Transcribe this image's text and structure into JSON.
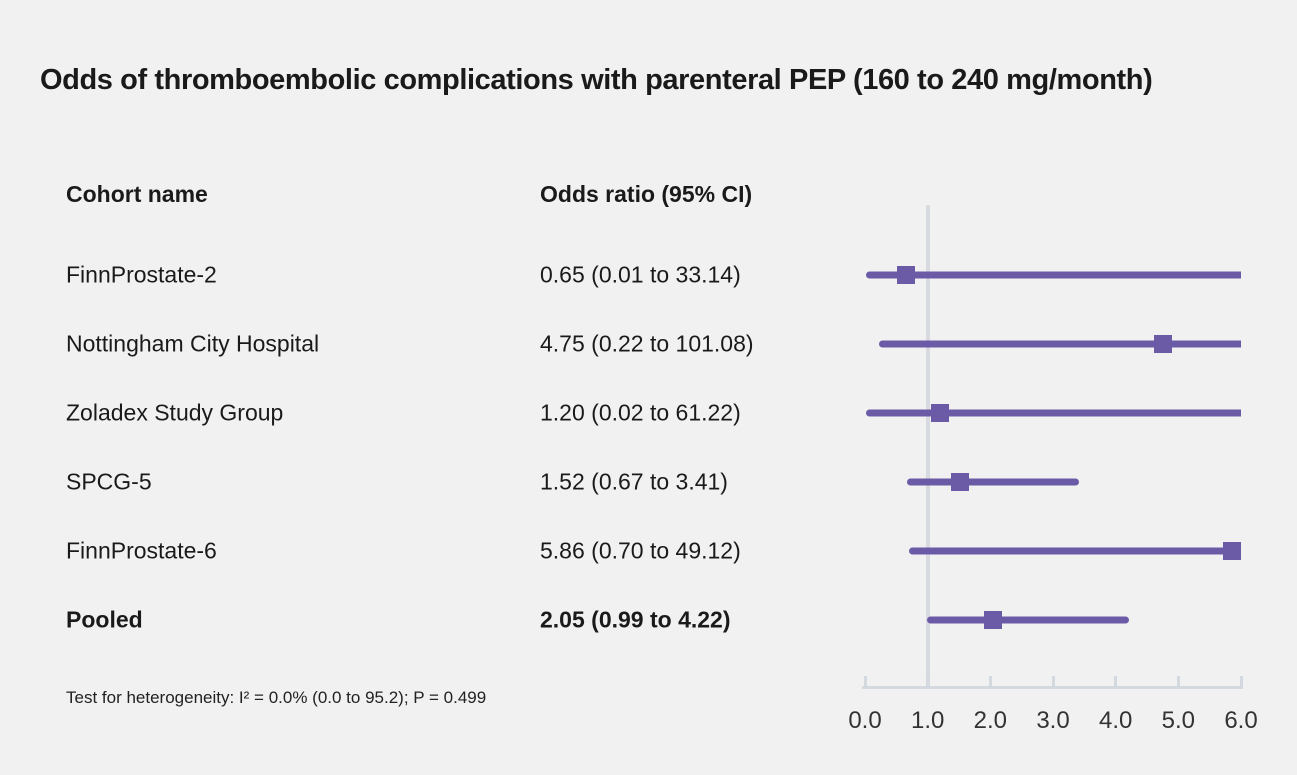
{
  "title": "Odds of thromboembolic complications with parenteral PEP (160 to 240 mg/month)",
  "columns": {
    "cohort": "Cohort name",
    "or": "Odds ratio (95% CI)"
  },
  "footnote": "Test for heterogeneity: I² = 0.0% (0.0 to 95.2); P = 0.499",
  "colors": {
    "accent": "#6b5aa5",
    "background": "#f2f1f1",
    "axis": "#d4d8df",
    "reference_line": "#d7dae1",
    "text": "#1a1a1a",
    "tick_text": "#333333"
  },
  "chart_data": {
    "type": "forest",
    "title": "Odds of thromboembolic complications with parenteral PEP (160 to 240 mg/month)",
    "xlim": [
      0.0,
      6.0
    ],
    "x_ticks": [
      "0.0",
      "1.0",
      "2.0",
      "3.0",
      "4.0",
      "5.0",
      "6.0"
    ],
    "reference_line_x": 1.0,
    "grid": false,
    "legend": "none",
    "rows": [
      {
        "label": "FinnProstate-2",
        "or": 0.65,
        "ci_low": 0.01,
        "ci_high": 33.14,
        "or_text": "0.65 (0.01 to 33.14)",
        "bold": false
      },
      {
        "label": "Nottingham City Hospital",
        "or": 4.75,
        "ci_low": 0.22,
        "ci_high": 101.08,
        "or_text": "4.75 (0.22 to 101.08)",
        "bold": false
      },
      {
        "label": "Zoladex Study Group",
        "or": 1.2,
        "ci_low": 0.02,
        "ci_high": 61.22,
        "or_text": "1.20 (0.02 to 61.22)",
        "bold": false
      },
      {
        "label": "SPCG-5",
        "or": 1.52,
        "ci_low": 0.67,
        "ci_high": 3.41,
        "or_text": "1.52 (0.67 to 3.41)",
        "bold": false
      },
      {
        "label": "FinnProstate-6",
        "or": 5.86,
        "ci_low": 0.7,
        "ci_high": 49.12,
        "or_text": "5.86 (0.70 to 49.12)",
        "bold": false
      },
      {
        "label": "Pooled",
        "or": 2.05,
        "ci_low": 0.99,
        "ci_high": 4.22,
        "or_text": "2.05 (0.99 to 4.22)",
        "bold": true
      }
    ]
  }
}
